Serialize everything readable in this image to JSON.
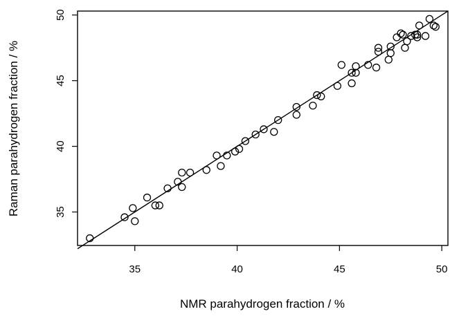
{
  "chart_data": {
    "type": "scatter",
    "title": "",
    "xlabel": "NMR parahydrogen fraction / %",
    "ylabel": "Raman parahydrogen fraction / %",
    "xlim": [
      32.2,
      50.3
    ],
    "ylim": [
      32.45,
      50.3
    ],
    "xticks": [
      35,
      40,
      45,
      50
    ],
    "yticks": [
      35,
      40,
      45,
      50
    ],
    "grid": false,
    "legend": "none",
    "marker": "open-circle",
    "fit_line": {
      "x": [
        32.2,
        50.3
      ],
      "y": [
        32.2,
        50.3
      ]
    },
    "points": [
      [
        32.8,
        33.0
      ],
      [
        34.5,
        34.6
      ],
      [
        34.9,
        35.3
      ],
      [
        35.0,
        34.3
      ],
      [
        35.6,
        36.1
      ],
      [
        36.0,
        35.5
      ],
      [
        36.2,
        35.5
      ],
      [
        36.6,
        36.8
      ],
      [
        37.1,
        37.3
      ],
      [
        37.3,
        38.0
      ],
      [
        37.3,
        36.9
      ],
      [
        37.7,
        38.0
      ],
      [
        38.5,
        38.2
      ],
      [
        39.0,
        39.3
      ],
      [
        39.2,
        38.5
      ],
      [
        39.5,
        39.3
      ],
      [
        39.9,
        39.6
      ],
      [
        40.1,
        39.8
      ],
      [
        40.4,
        40.4
      ],
      [
        40.9,
        40.9
      ],
      [
        41.3,
        41.3
      ],
      [
        41.8,
        41.1
      ],
      [
        42.0,
        42.0
      ],
      [
        42.9,
        43.0
      ],
      [
        42.9,
        42.4
      ],
      [
        43.7,
        43.1
      ],
      [
        43.9,
        43.9
      ],
      [
        44.1,
        43.8
      ],
      [
        44.9,
        44.6
      ],
      [
        45.1,
        46.2
      ],
      [
        45.6,
        45.6
      ],
      [
        45.6,
        44.8
      ],
      [
        45.8,
        46.1
      ],
      [
        45.8,
        45.6
      ],
      [
        46.4,
        46.2
      ],
      [
        46.8,
        46.0
      ],
      [
        46.9,
        47.2
      ],
      [
        46.9,
        47.5
      ],
      [
        47.4,
        46.6
      ],
      [
        47.5,
        47.1
      ],
      [
        47.5,
        47.6
      ],
      [
        47.8,
        48.3
      ],
      [
        48.0,
        48.6
      ],
      [
        48.1,
        48.5
      ],
      [
        48.2,
        47.5
      ],
      [
        48.3,
        48.0
      ],
      [
        48.5,
        48.4
      ],
      [
        48.7,
        48.5
      ],
      [
        48.8,
        48.3
      ],
      [
        48.8,
        48.5
      ],
      [
        48.9,
        49.2
      ],
      [
        49.2,
        48.4
      ],
      [
        49.4,
        49.7
      ],
      [
        49.6,
        49.2
      ],
      [
        49.7,
        49.1
      ]
    ]
  }
}
